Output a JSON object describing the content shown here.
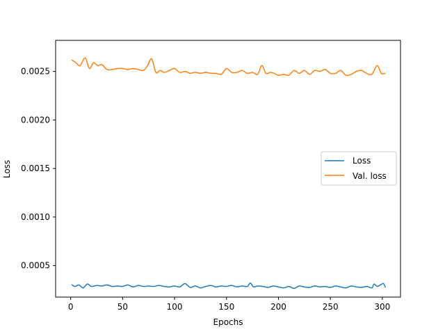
{
  "chart_data": {
    "type": "line",
    "title": "",
    "xlabel": "Epochs",
    "ylabel": "Loss",
    "xlim": [
      -14.5,
      317.5
    ],
    "ylim": [
      0.000175,
      0.00282
    ],
    "xticks": [
      0,
      50,
      100,
      150,
      200,
      250,
      300
    ],
    "xtick_labels": [
      "0",
      "50",
      "100",
      "150",
      "200",
      "250",
      "300"
    ],
    "yticks": [
      0.0005,
      0.001,
      0.0015,
      0.002,
      0.0025
    ],
    "ytick_labels": [
      "0.0005",
      "0.0010",
      "0.0015",
      "0.0020",
      "0.0025"
    ],
    "grid": false,
    "legend_position": "center-right",
    "series": [
      {
        "name": "Loss",
        "color": "#1f77b4",
        "x": [
          1,
          4,
          8,
          12,
          16,
          20,
          25,
          30,
          35,
          40,
          45,
          50,
          55,
          60,
          65,
          70,
          75,
          80,
          85,
          90,
          95,
          100,
          105,
          110,
          115,
          120,
          125,
          130,
          135,
          140,
          145,
          150,
          155,
          160,
          165,
          170,
          173,
          176,
          180,
          185,
          190,
          195,
          200,
          205,
          210,
          215,
          220,
          225,
          230,
          235,
          240,
          245,
          250,
          255,
          260,
          265,
          270,
          275,
          280,
          285,
          290,
          292,
          295,
          298,
          301,
          303
        ],
        "values": [
          0.000305,
          0.000285,
          0.0003,
          0.00027,
          0.00031,
          0.000285,
          0.000295,
          0.00029,
          0.0003,
          0.000285,
          0.00029,
          0.000285,
          0.0003,
          0.00028,
          0.000295,
          0.000285,
          0.00029,
          0.000285,
          0.000295,
          0.000285,
          0.00028,
          0.00029,
          0.00028,
          0.000315,
          0.000275,
          0.00029,
          0.00027,
          0.000285,
          0.000295,
          0.00028,
          0.00029,
          0.000285,
          0.000295,
          0.00028,
          0.00029,
          0.000285,
          0.00032,
          0.00028,
          0.00029,
          0.000285,
          0.000275,
          0.00029,
          0.00028,
          0.00027,
          0.000285,
          0.000265,
          0.00029,
          0.00028,
          0.000275,
          0.00029,
          0.00028,
          0.000285,
          0.000275,
          0.00029,
          0.00028,
          0.00027,
          0.00029,
          0.00028,
          0.000275,
          0.000285,
          0.00027,
          0.00031,
          0.000285,
          0.0003,
          0.000315,
          0.000275
        ]
      },
      {
        "name": "Val. loss",
        "color": "#ff7f0e",
        "x": [
          1,
          5,
          9,
          14,
          18,
          22,
          26,
          30,
          35,
          40,
          45,
          50,
          55,
          60,
          65,
          70,
          74,
          78,
          82,
          86,
          90,
          95,
          100,
          105,
          110,
          115,
          120,
          125,
          130,
          135,
          140,
          145,
          150,
          155,
          160,
          165,
          170,
          175,
          180,
          184,
          188,
          192,
          196,
          200,
          205,
          210,
          215,
          220,
          225,
          230,
          235,
          240,
          245,
          250,
          255,
          260,
          265,
          270,
          275,
          280,
          285,
          290,
          295,
          299,
          303
        ],
        "values": [
          0.00262,
          0.00259,
          0.00256,
          0.00264,
          0.00253,
          0.00259,
          0.00256,
          0.00257,
          0.00252,
          0.00252,
          0.00253,
          0.00253,
          0.00252,
          0.00253,
          0.00252,
          0.00251,
          0.00256,
          0.00263,
          0.00249,
          0.00251,
          0.00249,
          0.00251,
          0.00253,
          0.00249,
          0.0025,
          0.00248,
          0.00249,
          0.00248,
          0.00249,
          0.00248,
          0.00248,
          0.00247,
          0.00253,
          0.00249,
          0.00249,
          0.00251,
          0.00248,
          0.00249,
          0.00247,
          0.00256,
          0.00248,
          0.00249,
          0.00248,
          0.00246,
          0.00247,
          0.00246,
          0.00251,
          0.00248,
          0.00251,
          0.00247,
          0.00251,
          0.0025,
          0.00252,
          0.00248,
          0.00248,
          0.00251,
          0.00246,
          0.00247,
          0.0025,
          0.00251,
          0.00248,
          0.00247,
          0.00256,
          0.00248,
          0.00248
        ]
      }
    ]
  }
}
